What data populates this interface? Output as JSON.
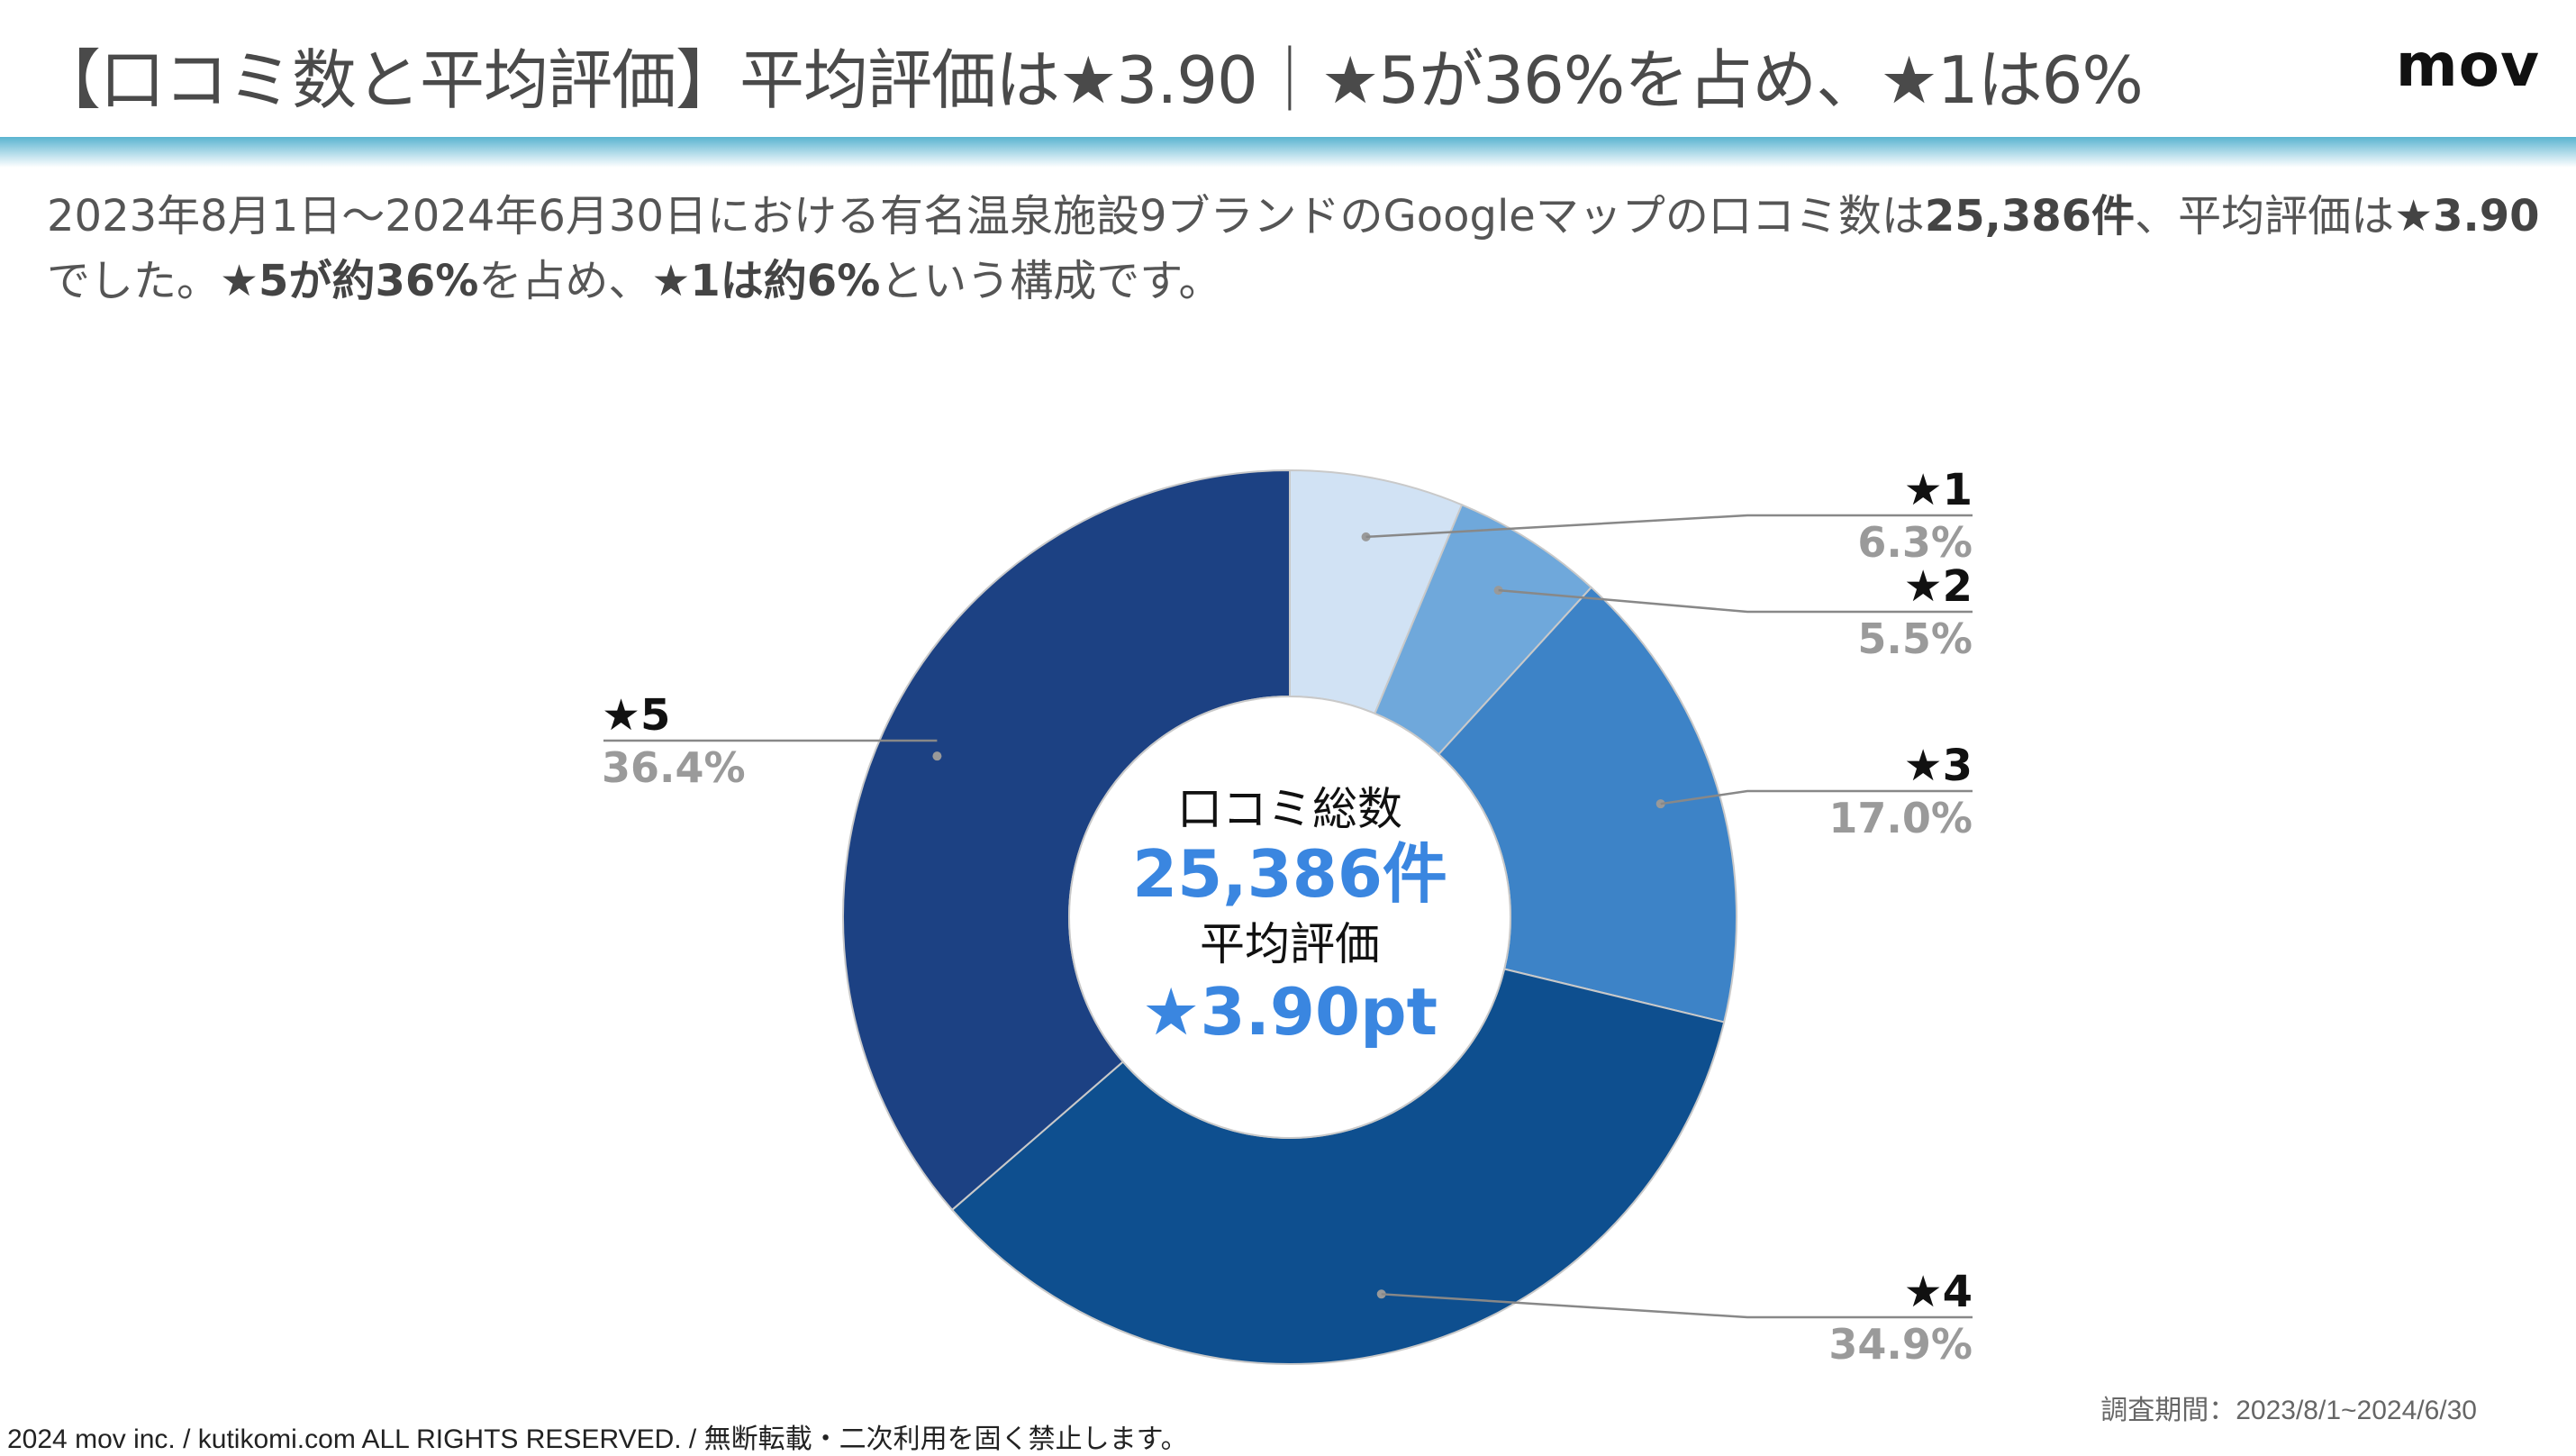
{
  "header": {
    "title": "【口コミ数と平均評価】平均評価は★3.90｜★5が36%を占め、★1は6%",
    "logo": "mov"
  },
  "description": {
    "p1": "2023年8月1日〜2024年6月30日における有名温泉施設9ブランドのGoogleマップの口コミ数は",
    "b1": "25,386件",
    "p2": "、平均評価は",
    "b2": "★3.90",
    "p3": "でした。",
    "b3": "★5が約36%",
    "p4": "を占め、",
    "b4": "★1は約6%",
    "p5": "という構成です。"
  },
  "center": {
    "label_total": "口コミ総数",
    "total_value": "25,386件",
    "label_avg": "平均評価",
    "avg_value": "★3.90pt"
  },
  "chart_data": {
    "type": "pie",
    "donut": true,
    "categories": [
      "★1",
      "★2",
      "★3",
      "★4",
      "★5"
    ],
    "values": [
      6.3,
      5.5,
      17.0,
      34.9,
      36.4
    ],
    "value_labels": [
      "6.3%",
      "5.5%",
      "17.0%",
      "34.9%",
      "36.4%"
    ],
    "colors": [
      "#d1e2f4",
      "#6fa8db",
      "#3d83c7",
      "#0e4f8f",
      "#1c4183"
    ],
    "label_color": "#9a9a9a",
    "accent_color": "#3a86e0"
  },
  "footer": {
    "copyright": "2024 mov inc. / kutikomi.com ALL RIGHTS RESERVED. / 無断転載・二次利用を固く禁止します。",
    "period": "調査期間：2023/8/1~2024/6/30"
  }
}
